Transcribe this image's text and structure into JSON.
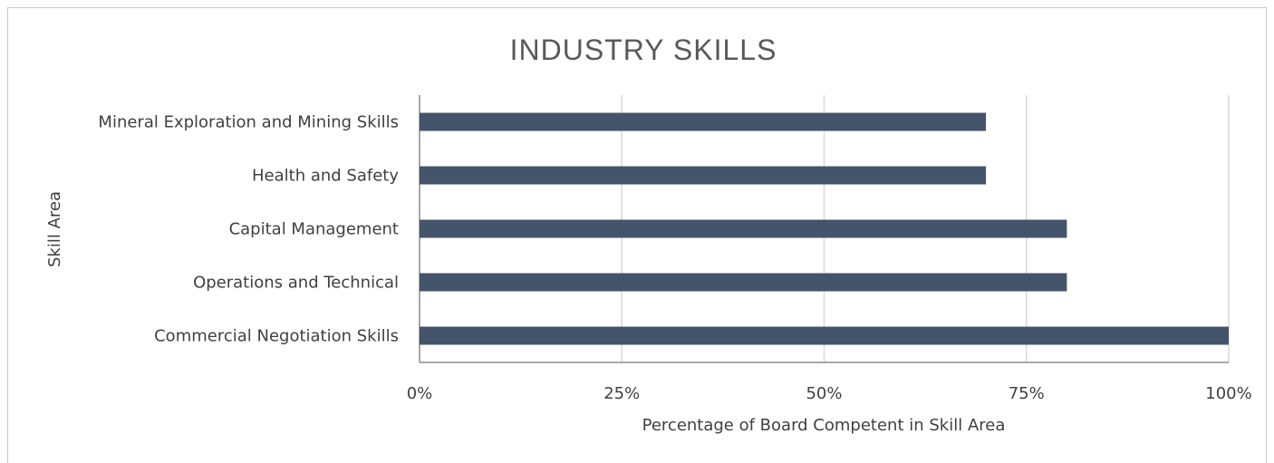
{
  "chart_data": {
    "type": "bar",
    "orientation": "horizontal",
    "title": "INDUSTRY SKILLS",
    "xlabel": "Percentage of Board Competent in Skill Area",
    "ylabel": "Skill Area",
    "categories": [
      "Mineral Exploration and Mining Skills",
      "Health and Safety",
      "Capital Management",
      "Operations and Technical",
      "Commercial Negotiation Skills"
    ],
    "values": [
      70,
      70,
      80,
      80,
      100
    ],
    "xlim": [
      0,
      100
    ],
    "x_ticks": [
      "0%",
      "25%",
      "50%",
      "75%",
      "100%"
    ],
    "grid": true,
    "legend": "none",
    "bar_color": "#44546a"
  }
}
